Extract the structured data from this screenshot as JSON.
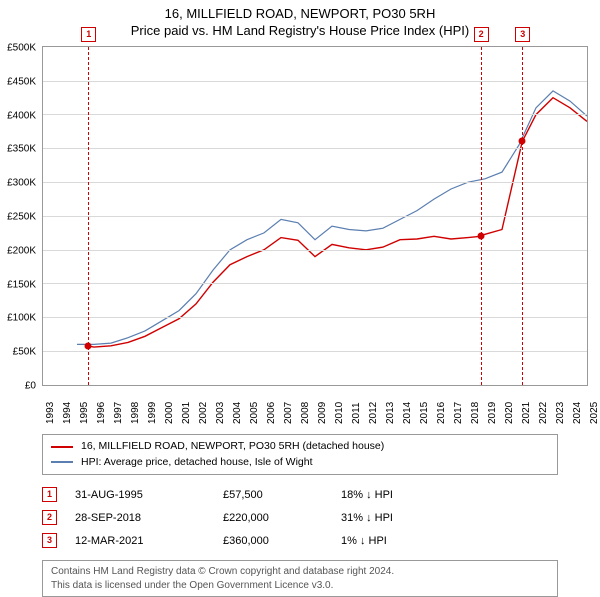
{
  "title_line1": "16, MILLFIELD ROAD, NEWPORT, PO30 5RH",
  "title_line2": "Price paid vs. HM Land Registry's House Price Index (HPI)",
  "chart": {
    "type": "line",
    "x_years_start": 1993,
    "x_years_end": 2025,
    "y_min": 0,
    "y_max": 500000,
    "y_step": 50000,
    "y_prefix": "£",
    "y_suffix_k": "K",
    "grid_color": "#d9d9d9",
    "border_color": "#999999",
    "bg": "#ffffff",
    "series": [
      {
        "id": "hpi",
        "label": "HPI: Average price, detached house, Isle of Wight",
        "color": "#5b7fb0",
        "width": 1.2,
        "points": [
          [
            1995.0,
            60000
          ],
          [
            1996.0,
            60000
          ],
          [
            1997.0,
            62000
          ],
          [
            1998.0,
            70000
          ],
          [
            1999.0,
            80000
          ],
          [
            2000.0,
            95000
          ],
          [
            2001.0,
            110000
          ],
          [
            2002.0,
            135000
          ],
          [
            2003.0,
            170000
          ],
          [
            2004.0,
            200000
          ],
          [
            2005.0,
            215000
          ],
          [
            2006.0,
            225000
          ],
          [
            2007.0,
            245000
          ],
          [
            2008.0,
            240000
          ],
          [
            2009.0,
            215000
          ],
          [
            2010.0,
            235000
          ],
          [
            2011.0,
            230000
          ],
          [
            2012.0,
            228000
          ],
          [
            2013.0,
            232000
          ],
          [
            2014.0,
            245000
          ],
          [
            2015.0,
            258000
          ],
          [
            2016.0,
            275000
          ],
          [
            2017.0,
            290000
          ],
          [
            2018.0,
            300000
          ],
          [
            2019.0,
            305000
          ],
          [
            2020.0,
            315000
          ],
          [
            2021.0,
            355000
          ],
          [
            2022.0,
            410000
          ],
          [
            2023.0,
            435000
          ],
          [
            2024.0,
            420000
          ],
          [
            2025.0,
            398000
          ]
        ]
      },
      {
        "id": "property",
        "label": "16, MILLFIELD ROAD, NEWPORT, PO30 5RH (detached house)",
        "color": "#d00000",
        "width": 1.4,
        "points": [
          [
            1995.66,
            57500
          ],
          [
            1996.0,
            56000
          ],
          [
            1997.0,
            58000
          ],
          [
            1998.0,
            63000
          ],
          [
            1999.0,
            72000
          ],
          [
            2000.0,
            85000
          ],
          [
            2001.0,
            98000
          ],
          [
            2002.0,
            120000
          ],
          [
            2003.0,
            152000
          ],
          [
            2004.0,
            178000
          ],
          [
            2005.0,
            190000
          ],
          [
            2006.0,
            200000
          ],
          [
            2007.0,
            218000
          ],
          [
            2008.0,
            214000
          ],
          [
            2009.0,
            190000
          ],
          [
            2010.0,
            208000
          ],
          [
            2011.0,
            203000
          ],
          [
            2012.0,
            200000
          ],
          [
            2013.0,
            204000
          ],
          [
            2014.0,
            215000
          ],
          [
            2015.0,
            216000
          ],
          [
            2016.0,
            220000
          ],
          [
            2017.0,
            216000
          ],
          [
            2018.0,
            218000
          ],
          [
            2018.74,
            220000
          ],
          [
            2019.0,
            223000
          ],
          [
            2020.0,
            230000
          ],
          [
            2021.19,
            360000
          ],
          [
            2022.0,
            400000
          ],
          [
            2023.0,
            425000
          ],
          [
            2024.0,
            410000
          ],
          [
            2025.0,
            390000
          ]
        ]
      }
    ],
    "sale_markers": [
      {
        "n": "1",
        "year": 1995.66,
        "price": 57500,
        "color": "#d00000"
      },
      {
        "n": "2",
        "year": 2018.74,
        "price": 220000,
        "color": "#d00000"
      },
      {
        "n": "3",
        "year": 2021.19,
        "price": 360000,
        "color": "#d00000"
      }
    ]
  },
  "legend": {
    "rows": [
      {
        "color": "#d00000",
        "label": "16, MILLFIELD ROAD, NEWPORT, PO30 5RH (detached house)"
      },
      {
        "color": "#5b7fb0",
        "label": "HPI: Average price, detached house, Isle of Wight"
      }
    ]
  },
  "sales": [
    {
      "n": "1",
      "date": "31-AUG-1995",
      "price": "£57,500",
      "diff": "18% ↓ HPI"
    },
    {
      "n": "2",
      "date": "28-SEP-2018",
      "price": "£220,000",
      "diff": "31% ↓ HPI"
    },
    {
      "n": "3",
      "date": "12-MAR-2021",
      "price": "£360,000",
      "diff": "1% ↓ HPI"
    }
  ],
  "footer_line1": "Contains HM Land Registry data © Crown copyright and database right 2024.",
  "footer_line2": "This data is licensed under the Open Government Licence v3.0.",
  "fontsize": {
    "title": 13,
    "axis": 10,
    "legend": 10.5,
    "table": 11,
    "footer": 10
  },
  "colors": {
    "accent_red": "#d00000",
    "accent_blue": "#5b7fb0",
    "text": "#000000",
    "muted": "#555555"
  }
}
